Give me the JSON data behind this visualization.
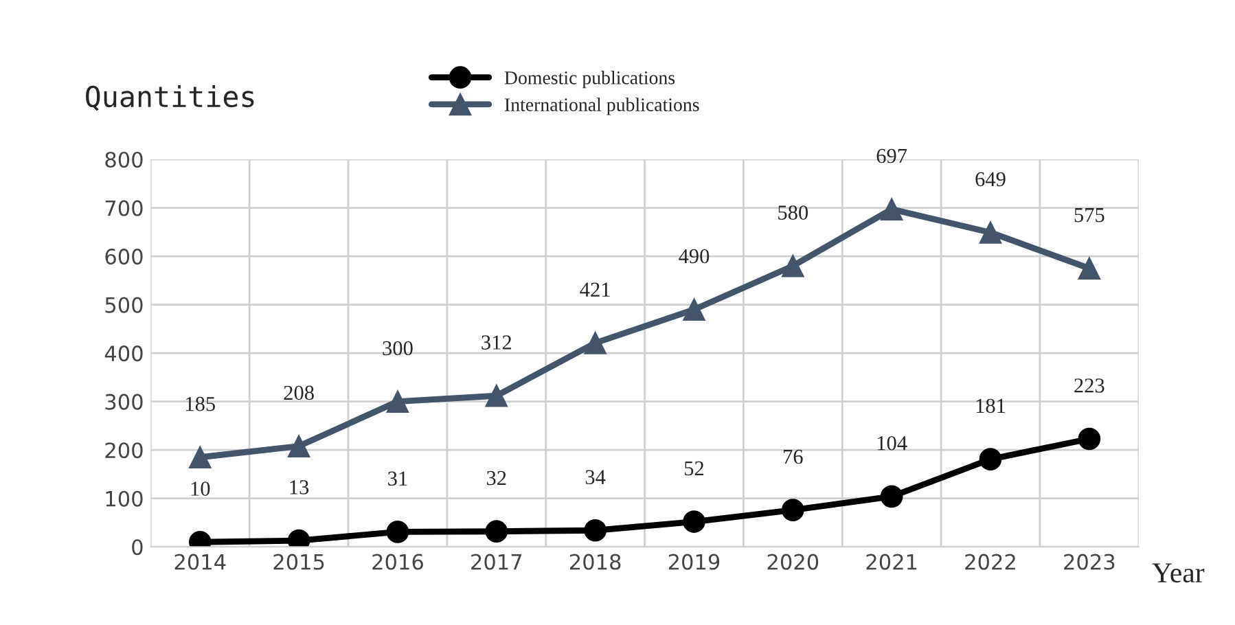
{
  "chart_data": {
    "type": "line",
    "xlabel": "Year",
    "ylabel": "Quantities",
    "categories": [
      "2014",
      "2015",
      "2016",
      "2017",
      "2018",
      "2019",
      "2020",
      "2021",
      "2022",
      "2023"
    ],
    "series": [
      {
        "name": "Domestic publications",
        "color": "#000000",
        "marker": "circle",
        "values": [
          10,
          13,
          31,
          32,
          34,
          52,
          76,
          104,
          181,
          223
        ]
      },
      {
        "name": "International publications",
        "color": "#44546a",
        "marker": "triangle",
        "values": [
          185,
          208,
          300,
          312,
          421,
          490,
          580,
          697,
          649,
          575
        ]
      }
    ],
    "ylim": [
      0,
      800
    ],
    "yticks": [
      0,
      100,
      200,
      300,
      400,
      500,
      600,
      700,
      800
    ],
    "grid": true,
    "legend": "top",
    "data_labels": true,
    "line_style": "solid"
  }
}
